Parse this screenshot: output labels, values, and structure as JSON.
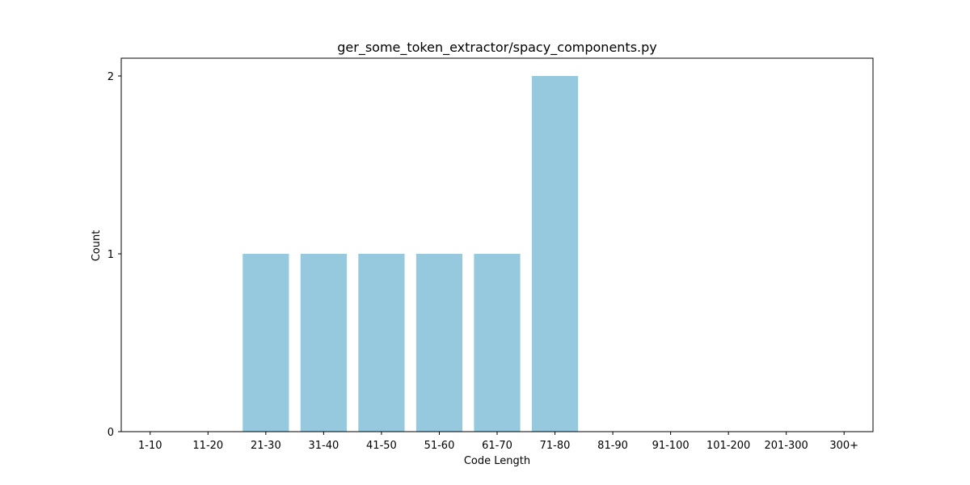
{
  "chart_data": {
    "type": "bar",
    "title": "ger_some_token_extractor/spacy_components.py",
    "xlabel": "Code Length",
    "ylabel": "Count",
    "categories": [
      "1-10",
      "11-20",
      "21-30",
      "31-40",
      "41-50",
      "51-60",
      "61-70",
      "71-80",
      "81-90",
      "91-100",
      "101-200",
      "201-300",
      "300+"
    ],
    "values": [
      0,
      0,
      1,
      1,
      1,
      1,
      1,
      2,
      0,
      0,
      0,
      0,
      0
    ],
    "yticks": [
      0,
      1,
      2
    ],
    "ylim": [
      0,
      2.1
    ],
    "grid": false,
    "bar_color": "#96c9dd"
  }
}
